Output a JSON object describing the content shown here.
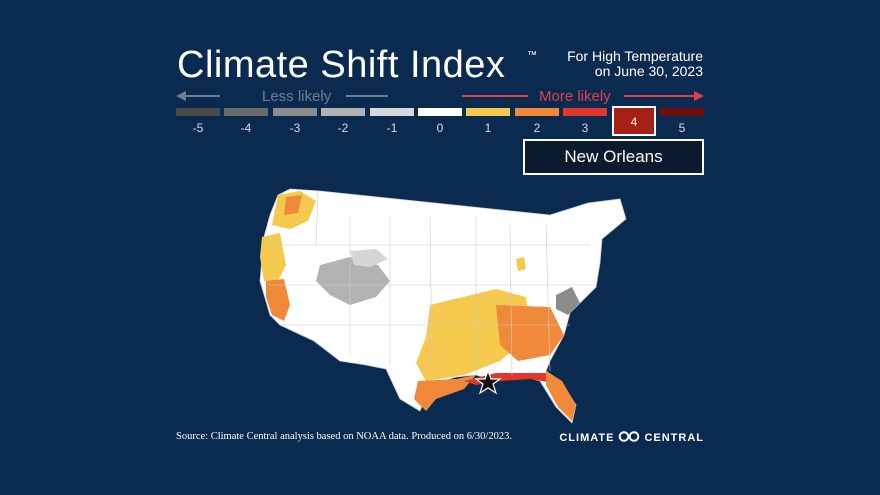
{
  "title": "Climate Shift Index",
  "trademark": "™",
  "subtitle_line1": "For High Temperature",
  "subtitle_line2": "on June 30, 2023",
  "legend": {
    "less_label": "Less likely",
    "more_label": "More likely",
    "levels": [
      {
        "label": "-5",
        "color": "#4a4a4a"
      },
      {
        "label": "-4",
        "color": "#6b6b6b"
      },
      {
        "label": "-3",
        "color": "#8c8c8c"
      },
      {
        "label": "-2",
        "color": "#b3b3b3"
      },
      {
        "label": "-1",
        "color": "#d6d6d6"
      },
      {
        "label": "0",
        "color": "#ffffff"
      },
      {
        "label": "1",
        "color": "#f5c94e"
      },
      {
        "label": "2",
        "color": "#f08a3a"
      },
      {
        "label": "3",
        "color": "#e2352c"
      },
      {
        "label": "4",
        "color": "#a52016"
      },
      {
        "label": "5",
        "color": "#6b0f0c"
      }
    ],
    "selected_level": "4"
  },
  "location": "New Orleans",
  "source_text": "Source: Climate Central analysis based on NOAA data. Produced on 6/30/2023.",
  "brand_left": "CLIMATE",
  "brand_right": "CENTRAL",
  "colors": {
    "background": "#0b2a4f",
    "less_arrow": "#6f7f92",
    "more_arrow": "#e0404a"
  }
}
